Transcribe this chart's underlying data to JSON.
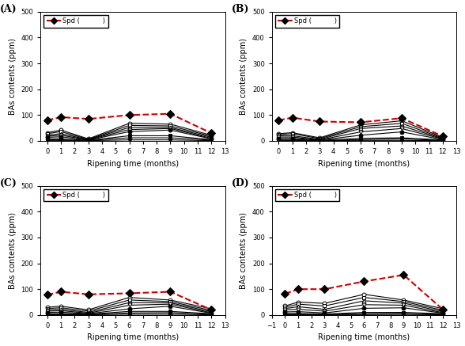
{
  "panel_titles": [
    "(A)",
    "(B)",
    "(C)",
    "(D)"
  ],
  "xlabel": "Ripening time (months)",
  "ylabel": "BAs contents (ppm)",
  "ylim": [
    0,
    500
  ],
  "yticks": [
    0,
    100,
    200,
    300,
    400,
    500
  ],
  "x_data": [
    0,
    1,
    3,
    6,
    9,
    12
  ],
  "spd_color": "#cc0000",
  "line_color": "#000000",
  "background_color": "#ffffff",
  "series_A": {
    "spd": [
      80,
      92,
      85,
      100,
      105,
      30
    ],
    "others": [
      {
        "y": [
          32,
          42,
          8,
          68,
          65,
          22
        ],
        "marker": "o",
        "open": true
      },
      {
        "y": [
          28,
          36,
          6,
          60,
          58,
          18
        ],
        "marker": "s",
        "open": true
      },
      {
        "y": [
          22,
          28,
          5,
          52,
          52,
          14
        ],
        "marker": "^",
        "open": true
      },
      {
        "y": [
          18,
          22,
          4,
          44,
          48,
          10
        ],
        "marker": "v",
        "open": true
      },
      {
        "y": [
          14,
          16,
          3,
          36,
          42,
          8
        ],
        "marker": "o",
        "open": false
      },
      {
        "y": [
          8,
          8,
          2,
          20,
          20,
          5
        ],
        "marker": "s",
        "open": false
      },
      {
        "y": [
          4,
          4,
          2,
          12,
          12,
          3
        ],
        "marker": "^",
        "open": false
      },
      {
        "y": [
          1,
          1,
          1,
          4,
          4,
          1
        ],
        "marker": "v",
        "open": false
      }
    ]
  },
  "series_B": {
    "spd": [
      80,
      90,
      75,
      72,
      88,
      18
    ],
    "others": [
      {
        "y": [
          28,
          32,
          12,
          62,
          78,
          14
        ],
        "marker": "o",
        "open": true
      },
      {
        "y": [
          24,
          28,
          9,
          55,
          68,
          11
        ],
        "marker": "s",
        "open": true
      },
      {
        "y": [
          20,
          20,
          6,
          48,
          58,
          9
        ],
        "marker": "^",
        "open": true
      },
      {
        "y": [
          15,
          15,
          4,
          35,
          48,
          7
        ],
        "marker": "v",
        "open": true
      },
      {
        "y": [
          10,
          10,
          3,
          22,
          35,
          5
        ],
        "marker": "o",
        "open": false
      },
      {
        "y": [
          5,
          5,
          2,
          10,
          12,
          4
        ],
        "marker": "s",
        "open": false
      },
      {
        "y": [
          3,
          3,
          1,
          5,
          8,
          2
        ],
        "marker": "^",
        "open": false
      },
      {
        "y": [
          1,
          1,
          1,
          2,
          2,
          1
        ],
        "marker": "v",
        "open": false
      }
    ]
  },
  "series_C": {
    "spd": [
      78,
      90,
      80,
      84,
      90,
      20
    ],
    "others": [
      {
        "y": [
          30,
          34,
          20,
          68,
          58,
          24
        ],
        "marker": "o",
        "open": true
      },
      {
        "y": [
          25,
          28,
          15,
          58,
          52,
          18
        ],
        "marker": "s",
        "open": true
      },
      {
        "y": [
          20,
          22,
          10,
          48,
          47,
          13
        ],
        "marker": "^",
        "open": true
      },
      {
        "y": [
          15,
          17,
          7,
          38,
          42,
          9
        ],
        "marker": "v",
        "open": true
      },
      {
        "y": [
          10,
          11,
          5,
          24,
          34,
          7
        ],
        "marker": "o",
        "open": false
      },
      {
        "y": [
          5,
          5,
          3,
          14,
          14,
          5
        ],
        "marker": "s",
        "open": false
      },
      {
        "y": [
          3,
          3,
          2,
          8,
          9,
          3
        ],
        "marker": "^",
        "open": false
      },
      {
        "y": [
          1,
          1,
          1,
          3,
          3,
          1
        ],
        "marker": "v",
        "open": false
      }
    ]
  },
  "series_D": {
    "spd": [
      82,
      100,
      100,
      130,
      155,
      20
    ],
    "others": [
      {
        "y": [
          35,
          50,
          45,
          80,
          58,
          24
        ],
        "marker": "o",
        "open": true
      },
      {
        "y": [
          30,
          42,
          35,
          68,
          52,
          18
        ],
        "marker": "s",
        "open": true
      },
      {
        "y": [
          25,
          32,
          22,
          55,
          46,
          13
        ],
        "marker": "^",
        "open": true
      },
      {
        "y": [
          20,
          22,
          15,
          40,
          38,
          9
        ],
        "marker": "v",
        "open": true
      },
      {
        "y": [
          12,
          13,
          8,
          26,
          28,
          7
        ],
        "marker": "o",
        "open": false
      },
      {
        "y": [
          6,
          6,
          4,
          10,
          10,
          5
        ],
        "marker": "s",
        "open": false
      },
      {
        "y": [
          3,
          3,
          2,
          5,
          7,
          3
        ],
        "marker": "^",
        "open": false
      },
      {
        "y": [
          1,
          1,
          1,
          2,
          2,
          1
        ],
        "marker": "v",
        "open": false
      }
    ]
  }
}
